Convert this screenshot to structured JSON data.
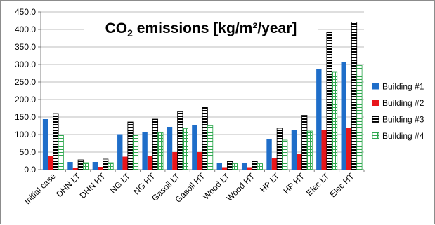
{
  "chart_data": {
    "type": "bar",
    "title": "CO₂ emissions [kg/m²/year]",
    "title_parts": {
      "prefix": "CO",
      "sub": "2",
      "suffix": " emissions [kg/m²/year]"
    },
    "xlabel": "",
    "ylabel": "",
    "ylim": [
      0,
      450
    ],
    "yticks": [
      "0.0",
      "50.0",
      "100.0",
      "150.0",
      "200.0",
      "250.0",
      "300.0",
      "350.0",
      "400.0",
      "450.0"
    ],
    "grid": true,
    "legend": "right",
    "categories": [
      "Initial case",
      "DHN LT",
      "DHN HT",
      "NG LT",
      "NG HT",
      "Gasoil LT",
      "Gasoil HT",
      "Wood LT",
      "Wood HT",
      "HP LT",
      "HP HT",
      "Elec LT",
      "Elec HT"
    ],
    "series": [
      {
        "name": "Building #1",
        "color": "#1f6ec9",
        "pattern": "solid",
        "values": [
          144,
          22,
          22,
          101,
          107,
          122,
          128,
          18,
          18,
          87,
          114,
          286,
          308
        ]
      },
      {
        "name": "Building #2",
        "color": "#e8161b",
        "pattern": "solid",
        "values": [
          40,
          6,
          8,
          37,
          40,
          50,
          50,
          7,
          7,
          33,
          45,
          113,
          120
        ]
      },
      {
        "name": "Building #3",
        "color": "#000000",
        "pattern": "hstripes",
        "values": [
          160,
          28,
          30,
          136,
          144,
          165,
          178,
          25,
          25,
          118,
          155,
          392,
          421
        ]
      },
      {
        "name": "Building #4",
        "color": "#2fa84f",
        "pattern": "grid",
        "values": [
          98,
          20,
          20,
          98,
          105,
          117,
          125,
          17,
          17,
          84,
          110,
          278,
          297
        ]
      }
    ]
  }
}
